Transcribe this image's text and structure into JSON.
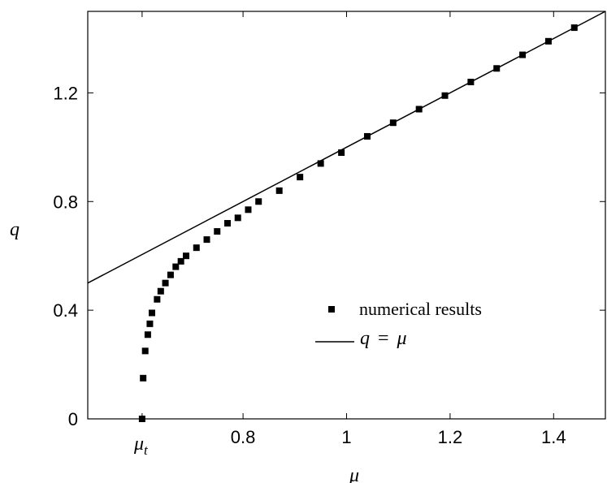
{
  "chart_data": {
    "type": "scatter",
    "title": "",
    "xlabel": "μ",
    "ylabel": "q",
    "xlim": [
      0.5,
      1.5
    ],
    "ylim": [
      0,
      1.5
    ],
    "x_ticks": [
      0.8,
      1.0,
      1.2,
      1.4
    ],
    "x_tick_labels": [
      "0.8",
      "1",
      "1.2",
      "1.4"
    ],
    "y_ticks": [
      0,
      0.4,
      0.8,
      1.2
    ],
    "y_tick_labels": [
      "0",
      "0.4",
      "0.8",
      "1.2"
    ],
    "x_annotation": {
      "label_base": "μ",
      "label_sub": "t",
      "x": 0.605
    },
    "grid": false,
    "legend_position": "center-right",
    "series": [
      {
        "name": "numerical results",
        "kind": "markers",
        "x": [
          0.605,
          0.607,
          0.611,
          0.616,
          0.62,
          0.624,
          0.634,
          0.641,
          0.65,
          0.66,
          0.67,
          0.68,
          0.69,
          0.71,
          0.73,
          0.75,
          0.77,
          0.79,
          0.81,
          0.83,
          0.87,
          0.91,
          0.95,
          0.99,
          1.04,
          1.09,
          1.14,
          1.19,
          1.24,
          1.29,
          1.34,
          1.39,
          1.44
        ],
        "y": [
          0.0,
          0.15,
          0.25,
          0.31,
          0.35,
          0.39,
          0.44,
          0.47,
          0.5,
          0.53,
          0.56,
          0.58,
          0.6,
          0.63,
          0.66,
          0.69,
          0.72,
          0.74,
          0.77,
          0.8,
          0.84,
          0.89,
          0.94,
          0.98,
          1.04,
          1.09,
          1.14,
          1.19,
          1.24,
          1.29,
          1.34,
          1.39,
          1.44
        ]
      },
      {
        "name": "q = μ",
        "kind": "line",
        "x": [
          0.5,
          1.5
        ],
        "y": [
          0.5,
          1.5
        ]
      }
    ],
    "legend": {
      "marker_label": "numerical results",
      "line_label_lhs": "q",
      "line_label_eq": "=",
      "line_label_rhs": "μ"
    }
  }
}
